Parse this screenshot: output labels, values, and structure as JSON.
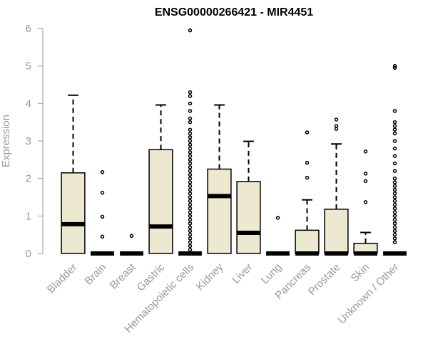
{
  "chart_data": {
    "type": "box",
    "title": "ENSG00000266421 - MIR4451",
    "xlabel": "",
    "ylabel": "Expression",
    "ylim": [
      0,
      6
    ],
    "yticks": [
      0,
      1,
      2,
      3,
      4,
      5,
      6
    ],
    "grid": false,
    "legend": "none",
    "box_fill": "#ede8d0",
    "box_stroke": "#000000",
    "categories": [
      "Bladder",
      "Brain",
      "Breast",
      "Gastric",
      "Hematopoietic cells",
      "Kidney",
      "Liver",
      "Lung",
      "Pancreas",
      "Prostate",
      "Skin",
      "Unknown / Other"
    ],
    "boxes": [
      {
        "category": "Bladder",
        "q1": 0,
        "median": 0.78,
        "q3": 2.15,
        "whisker_low": 0,
        "whisker_high": 4.22,
        "outliers": []
      },
      {
        "category": "Brain",
        "q1": 0,
        "median": 0,
        "q3": 0,
        "whisker_low": 0,
        "whisker_high": 0,
        "outliers": [
          0.45,
          0.98,
          1.62,
          2.17
        ]
      },
      {
        "category": "Breast",
        "q1": 0,
        "median": 0,
        "q3": 0,
        "whisker_low": 0,
        "whisker_high": 0,
        "outliers": [
          0.47
        ]
      },
      {
        "category": "Gastric",
        "q1": 0,
        "median": 0.72,
        "q3": 2.77,
        "whisker_low": 0,
        "whisker_high": 3.96,
        "outliers": []
      },
      {
        "category": "Hematopoietic cells",
        "q1": 0,
        "median": 0,
        "q3": 0,
        "whisker_low": 0,
        "whisker_high": 0,
        "outliers": [
          0.1,
          0.2,
          0.3,
          0.4,
          0.5,
          0.6,
          0.7,
          0.8,
          0.9,
          1.0,
          1.1,
          1.2,
          1.3,
          1.4,
          1.5,
          1.6,
          1.7,
          1.8,
          1.9,
          2.0,
          2.1,
          2.2,
          2.3,
          2.4,
          2.5,
          2.6,
          2.7,
          2.8,
          2.9,
          3.0,
          3.1,
          3.2,
          3.3,
          3.5,
          3.6,
          3.8,
          4.0,
          4.2,
          4.3,
          5.95
        ]
      },
      {
        "category": "Kidney",
        "q1": 0,
        "median": 1.53,
        "q3": 2.25,
        "whisker_low": 0,
        "whisker_high": 3.96,
        "outliers": []
      },
      {
        "category": "Liver",
        "q1": 0,
        "median": 0.55,
        "q3": 1.92,
        "whisker_low": 0,
        "whisker_high": 2.99,
        "outliers": []
      },
      {
        "category": "Lung",
        "q1": 0,
        "median": 0,
        "q3": 0,
        "whisker_low": 0,
        "whisker_high": 0,
        "outliers": [
          0.95
        ]
      },
      {
        "category": "Pancreas",
        "q1": 0,
        "median": 0,
        "q3": 0.62,
        "whisker_low": 0,
        "whisker_high": 1.43,
        "outliers": [
          2.02,
          2.42,
          3.23
        ]
      },
      {
        "category": "Prostate",
        "q1": 0,
        "median": 0,
        "q3": 1.18,
        "whisker_low": 0,
        "whisker_high": 2.92,
        "outliers": [
          3.32,
          3.4,
          3.57
        ]
      },
      {
        "category": "Skin",
        "q1": 0,
        "median": 0,
        "q3": 0.27,
        "whisker_low": 0,
        "whisker_high": 0.56,
        "outliers": [
          1.37,
          1.93,
          2.13,
          2.72
        ]
      },
      {
        "category": "Unknown / Other",
        "q1": 0,
        "median": 0,
        "q3": 0,
        "whisker_low": 0,
        "whisker_high": 0,
        "outliers": [
          0.3,
          0.4,
          0.5,
          0.6,
          0.7,
          0.8,
          0.9,
          1.0,
          1.1,
          1.2,
          1.3,
          1.4,
          1.5,
          1.6,
          1.7,
          1.8,
          1.9,
          2.0,
          2.2,
          2.4,
          2.6,
          2.8,
          3.0,
          3.2,
          3.3,
          3.4,
          3.5,
          3.8,
          4.95,
          5.0
        ]
      }
    ]
  }
}
